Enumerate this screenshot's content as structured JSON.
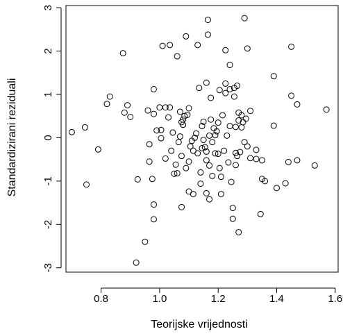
{
  "chart_data": {
    "type": "scatter",
    "title": "",
    "xlabel": "Teorijske vrijednosti",
    "ylabel": "Standardizirani reziduali",
    "xlim": [
      0.68,
      1.61
    ],
    "ylim": [
      -3.1,
      3.05
    ],
    "xticks": [
      0.8,
      1.0,
      1.2,
      1.4,
      1.6
    ],
    "xtick_labels": [
      "0.8",
      "1.0",
      "1.2",
      "1.4",
      "1.6"
    ],
    "yticks": [
      -3,
      -2,
      -1,
      0,
      1,
      2,
      3
    ],
    "ytick_labels": [
      "-3",
      "-2",
      "-1",
      "0",
      "1",
      "2",
      "3"
    ],
    "grid": false,
    "marker": "open-circle",
    "series": [
      {
        "points": [
          [
            0.7,
            0.13
          ],
          [
            0.745,
            0.24
          ],
          [
            0.75,
            -1.08
          ],
          [
            0.79,
            -0.27
          ],
          [
            0.82,
            0.78
          ],
          [
            0.83,
            0.95
          ],
          [
            0.875,
            1.95
          ],
          [
            0.88,
            0.58
          ],
          [
            0.89,
            0.75
          ],
          [
            0.9,
            0.48
          ],
          [
            0.92,
            -2.88
          ],
          [
            0.925,
            -0.96
          ],
          [
            0.95,
            -2.4
          ],
          [
            0.96,
            0.63
          ],
          [
            0.965,
            -0.15
          ],
          [
            0.965,
            -0.55
          ],
          [
            0.975,
            -0.95
          ],
          [
            0.98,
            -1.88
          ],
          [
            0.98,
            -1.54
          ],
          [
            0.98,
            0.55
          ],
          [
            0.98,
            1.12
          ],
          [
            0.99,
            0.17
          ],
          [
            1.0,
            0.7
          ],
          [
            1.005,
            0.18
          ],
          [
            1.005,
            -0.01
          ],
          [
            1.01,
            2.12
          ],
          [
            1.02,
            -0.48
          ],
          [
            1.02,
            0.7
          ],
          [
            1.03,
            0.47
          ],
          [
            1.035,
            2.14
          ],
          [
            1.035,
            0.7
          ],
          [
            1.04,
            -0.3
          ],
          [
            1.045,
            0.12
          ],
          [
            1.05,
            -0.83
          ],
          [
            1.055,
            -0.62
          ],
          [
            1.06,
            -0.82
          ],
          [
            1.06,
            1.88
          ],
          [
            1.065,
            -0.1
          ],
          [
            1.07,
            0.03
          ],
          [
            1.07,
            0.6
          ],
          [
            1.075,
            0.36
          ],
          [
            1.075,
            -0.42
          ],
          [
            1.075,
            -1.6
          ],
          [
            1.08,
            0.3
          ],
          [
            1.08,
            0.42
          ],
          [
            1.085,
            0.5
          ],
          [
            1.09,
            2.34
          ],
          [
            1.09,
            -0.7
          ],
          [
            1.095,
            0.53
          ],
          [
            1.1,
            0.68
          ],
          [
            1.1,
            -1.24
          ],
          [
            1.1,
            -0.55
          ],
          [
            1.105,
            -0.2
          ],
          [
            1.11,
            -0.07
          ],
          [
            1.115,
            -1.3
          ],
          [
            1.115,
            -0.3
          ],
          [
            1.12,
            0.0
          ],
          [
            1.125,
            0.1
          ],
          [
            1.13,
            2.14
          ],
          [
            1.13,
            -0.36
          ],
          [
            1.135,
            1.15
          ],
          [
            1.14,
            -0.8
          ],
          [
            1.14,
            -1.06
          ],
          [
            1.145,
            -0.24
          ],
          [
            1.145,
            0.27
          ],
          [
            1.15,
            0.37
          ],
          [
            1.15,
            -0.05
          ],
          [
            1.155,
            -0.22
          ],
          [
            1.16,
            1.27
          ],
          [
            1.16,
            -0.32
          ],
          [
            1.16,
            -0.52
          ],
          [
            1.16,
            -1.28
          ],
          [
            1.165,
            2.72
          ],
          [
            1.165,
            2.38
          ],
          [
            1.17,
            0.05
          ],
          [
            1.17,
            -0.64
          ],
          [
            1.17,
            -1.42
          ],
          [
            1.175,
            0.92
          ],
          [
            1.175,
            0.42
          ],
          [
            1.18,
            -0.1
          ],
          [
            1.18,
            -0.88
          ],
          [
            1.185,
            0.22
          ],
          [
            1.19,
            0.06
          ],
          [
            1.19,
            -0.36
          ],
          [
            1.195,
            0.15
          ],
          [
            1.2,
            0.35
          ],
          [
            1.2,
            -0.37
          ],
          [
            1.205,
            1.1
          ],
          [
            1.205,
            -0.7
          ],
          [
            1.21,
            -0.9
          ],
          [
            1.21,
            -1.3
          ],
          [
            1.215,
            0.52
          ],
          [
            1.22,
            -0.3
          ],
          [
            1.225,
            2.02
          ],
          [
            1.225,
            1.25
          ],
          [
            1.225,
            1.03
          ],
          [
            1.23,
            0.05
          ],
          [
            1.235,
            -0.57
          ],
          [
            1.24,
            1.68
          ],
          [
            1.24,
            1.12
          ],
          [
            1.24,
            0.27
          ],
          [
            1.245,
            -1.02
          ],
          [
            1.25,
            -1.62
          ],
          [
            1.25,
            -1.87
          ],
          [
            1.255,
            1.15
          ],
          [
            1.255,
            0.95
          ],
          [
            1.26,
            0.25
          ],
          [
            1.26,
            -0.35
          ],
          [
            1.26,
            -0.63
          ],
          [
            1.265,
            1.2
          ],
          [
            1.265,
            -0.42
          ],
          [
            1.27,
            0.58
          ],
          [
            1.27,
            0.4
          ],
          [
            1.27,
            -2.18
          ],
          [
            1.275,
            -0.33
          ],
          [
            1.28,
            0.52
          ],
          [
            1.28,
            0.24
          ],
          [
            1.285,
            0.36
          ],
          [
            1.29,
            2.76
          ],
          [
            1.29,
            -0.1
          ],
          [
            1.295,
            0.44
          ],
          [
            1.3,
            2.06
          ],
          [
            1.3,
            -0.2
          ],
          [
            1.31,
            0.62
          ],
          [
            1.31,
            -0.47
          ],
          [
            1.33,
            -0.28
          ],
          [
            1.33,
            -0.49
          ],
          [
            1.345,
            -1.76
          ],
          [
            1.35,
            -0.52
          ],
          [
            1.35,
            -0.95
          ],
          [
            1.36,
            -1.0
          ],
          [
            1.39,
            1.42
          ],
          [
            1.39,
            0.28
          ],
          [
            1.4,
            -1.16
          ],
          [
            1.43,
            -1.05
          ],
          [
            1.44,
            -0.56
          ],
          [
            1.45,
            0.97
          ],
          [
            1.45,
            2.1
          ],
          [
            1.47,
            0.77
          ],
          [
            1.47,
            -0.52
          ],
          [
            1.53,
            -0.64
          ],
          [
            1.57,
            0.65
          ]
        ]
      }
    ]
  }
}
